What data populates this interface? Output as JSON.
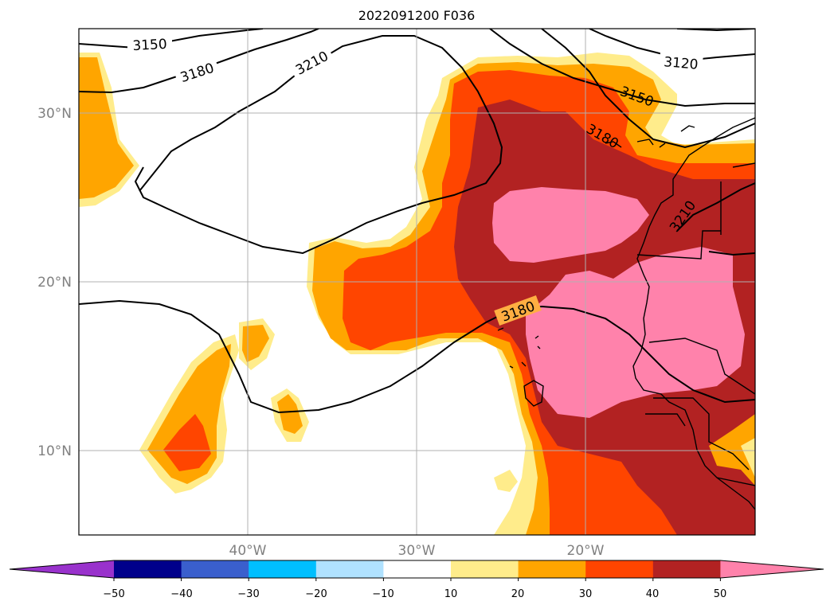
{
  "title": "2022091200 F036",
  "map": {
    "lat_labels": [
      "30°N",
      "20°N",
      "10°N"
    ],
    "lon_labels": [
      "40°W",
      "30°W",
      "20°W"
    ],
    "contour_labels": [
      "3150",
      "3180",
      "3210",
      "3120",
      "3150",
      "3180",
      "3210",
      "3180"
    ]
  },
  "colorbar": {
    "ticks": [
      "−50",
      "−40",
      "−30",
      "−20",
      "−10",
      "10",
      "20",
      "30",
      "40",
      "50"
    ],
    "colors": [
      "#9932cc",
      "#00008b",
      "#3a5fcd",
      "#00bfff",
      "#b0e2ff",
      "#ffffff",
      "#ffec8b",
      "#ffa500",
      "#ff4500",
      "#b22222",
      "#ff82ab"
    ]
  }
}
